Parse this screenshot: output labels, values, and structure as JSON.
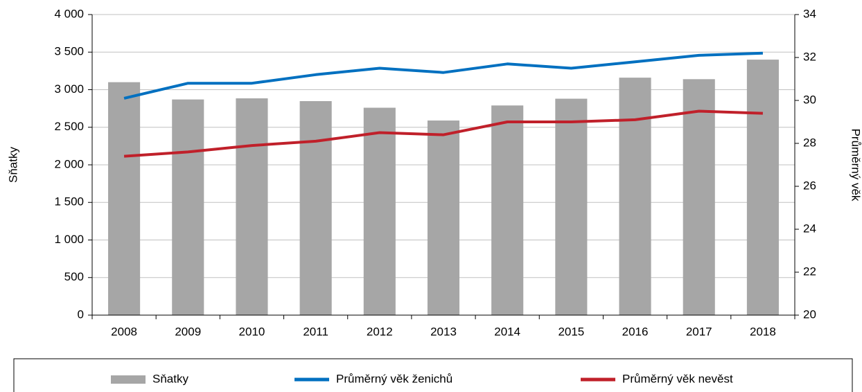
{
  "chart_data": {
    "type": "bar",
    "y_label": "Sňatky",
    "y2_label": "Průměrný věk",
    "categories": [
      "2008",
      "2009",
      "2010",
      "2011",
      "2012",
      "2013",
      "2014",
      "2015",
      "2016",
      "2017",
      "2018"
    ],
    "series": [
      {
        "name": "Sňatky",
        "type": "bar",
        "color": "#a6a6a6",
        "values": [
          3100,
          2870,
          2885,
          2848,
          2760,
          2590,
          2790,
          2880,
          3160,
          3140,
          3400
        ]
      },
      {
        "name": "Průměrný věk ženichů",
        "type": "line",
        "axis": "y2",
        "color": "#0070c0",
        "values": [
          30.1,
          30.8,
          30.8,
          31.2,
          31.5,
          31.3,
          31.7,
          31.5,
          31.8,
          32.1,
          32.2
        ]
      },
      {
        "name": "Průměrný věk nevěst",
        "type": "line",
        "axis": "y2",
        "color": "#c0202a",
        "values": [
          27.4,
          27.6,
          27.9,
          28.1,
          28.5,
          28.4,
          29.0,
          29.0,
          29.1,
          29.5,
          29.4
        ]
      }
    ],
    "ylim": [
      0,
      4000
    ],
    "yticks": [
      0,
      500,
      {
        "value": 1000,
        "label": "1 000"
      },
      {
        "value": 1500,
        "label": "1 500"
      },
      {
        "value": 2000,
        "label": "2 000"
      },
      {
        "value": 2500,
        "label": "2 500"
      },
      {
        "value": 3000,
        "label": "3 000"
      },
      {
        "value": 3500,
        "label": "3 500"
      },
      {
        "value": 4000,
        "label": "4 000"
      }
    ],
    "y2lim": [
      20,
      34
    ],
    "y2ticks": [
      20,
      22,
      24,
      26,
      28,
      30,
      32,
      34
    ],
    "grid": true,
    "legend": "bottom"
  }
}
